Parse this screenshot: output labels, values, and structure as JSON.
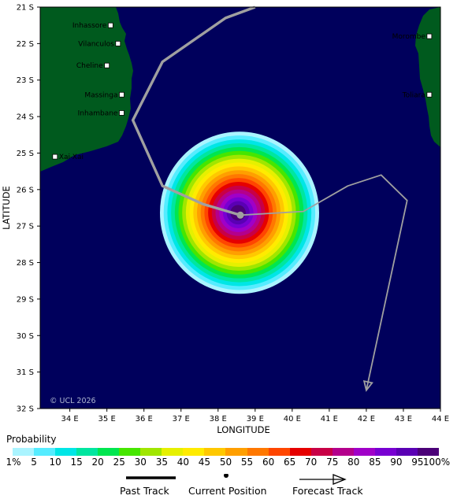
{
  "map": {
    "x_ticks": [
      "34 E",
      "35 E",
      "36 E",
      "37 E",
      "38 E",
      "39 E",
      "40 E",
      "41 E",
      "42 E",
      "43 E",
      "44 E"
    ],
    "y_ticks": [
      "21 S",
      "22 S",
      "23 S",
      "24 S",
      "25 S",
      "26 S",
      "27 S",
      "28 S",
      "29 S",
      "30 S",
      "31 S",
      "32 S"
    ],
    "xlabel": "LONGITUDE",
    "ylabel": "LATITUDE",
    "copyright": "© UCL 2026",
    "extent": {
      "lon": [
        33.2,
        44.0
      ],
      "lat": [
        -21.0,
        -32.0
      ]
    },
    "places": [
      {
        "name": "Inhassore",
        "lon": 35.1,
        "lat": -21.5,
        "label_side": "left"
      },
      {
        "name": "Vilanculos",
        "lon": 35.3,
        "lat": -22.0,
        "label_side": "left"
      },
      {
        "name": "Cheline",
        "lon": 35.0,
        "lat": -22.6,
        "label_side": "left"
      },
      {
        "name": "Massinga",
        "lon": 35.4,
        "lat": -23.4,
        "label_side": "left"
      },
      {
        "name": "Inhambane",
        "lon": 35.4,
        "lat": -23.9,
        "label_side": "left"
      },
      {
        "name": "Xai-Xai",
        "lon": 33.6,
        "lat": -25.1,
        "label_side": "right"
      },
      {
        "name": "Morombe",
        "lon": 43.7,
        "lat": -21.8,
        "label_side": "left"
      },
      {
        "name": "Toliara",
        "lon": 43.7,
        "lat": -23.4,
        "label_side": "left"
      }
    ],
    "past_track": [
      [
        39.0,
        -21.0
      ],
      [
        38.2,
        -21.3
      ],
      [
        36.5,
        -22.5
      ],
      [
        35.7,
        -24.1
      ],
      [
        36.5,
        -25.9
      ],
      [
        37.6,
        -26.4
      ],
      [
        38.6,
        -26.7
      ]
    ],
    "current_position": [
      38.6,
      -26.7
    ],
    "forecast_track": [
      [
        38.6,
        -26.7
      ],
      [
        40.3,
        -26.6
      ],
      [
        41.5,
        -25.9
      ],
      [
        42.4,
        -25.6
      ],
      [
        43.1,
        -26.3
      ],
      [
        42.0,
        -31.5
      ]
    ],
    "probability_center": [
      38.6,
      -26.7
    ],
    "colors": {
      "ocean": "#00005c",
      "land": "#005a1e",
      "past_track": "#a0a0a0",
      "forecast_track": "#a0a0a0"
    }
  },
  "legend": {
    "title": "Probability",
    "labels": [
      "1%",
      "5",
      "10",
      "15",
      "20",
      "25",
      "30",
      "35",
      "40",
      "45",
      "50",
      "55",
      "60",
      "65",
      "70",
      "75",
      "80",
      "85",
      "90",
      "95",
      "100%"
    ],
    "colors": [
      "#aaf4ff",
      "#55ecff",
      "#00e6e6",
      "#00e6a0",
      "#00e650",
      "#46e600",
      "#a0e600",
      "#e6f000",
      "#ffeb00",
      "#ffc800",
      "#ff9f00",
      "#ff7800",
      "#ff4600",
      "#e60000",
      "#c80046",
      "#b4008c",
      "#a000c8",
      "#7800d2",
      "#5a00b4",
      "#4b0078"
    ],
    "key": {
      "past": "Past Track",
      "current": "Current Position",
      "forecast": "Forecast Track"
    }
  }
}
